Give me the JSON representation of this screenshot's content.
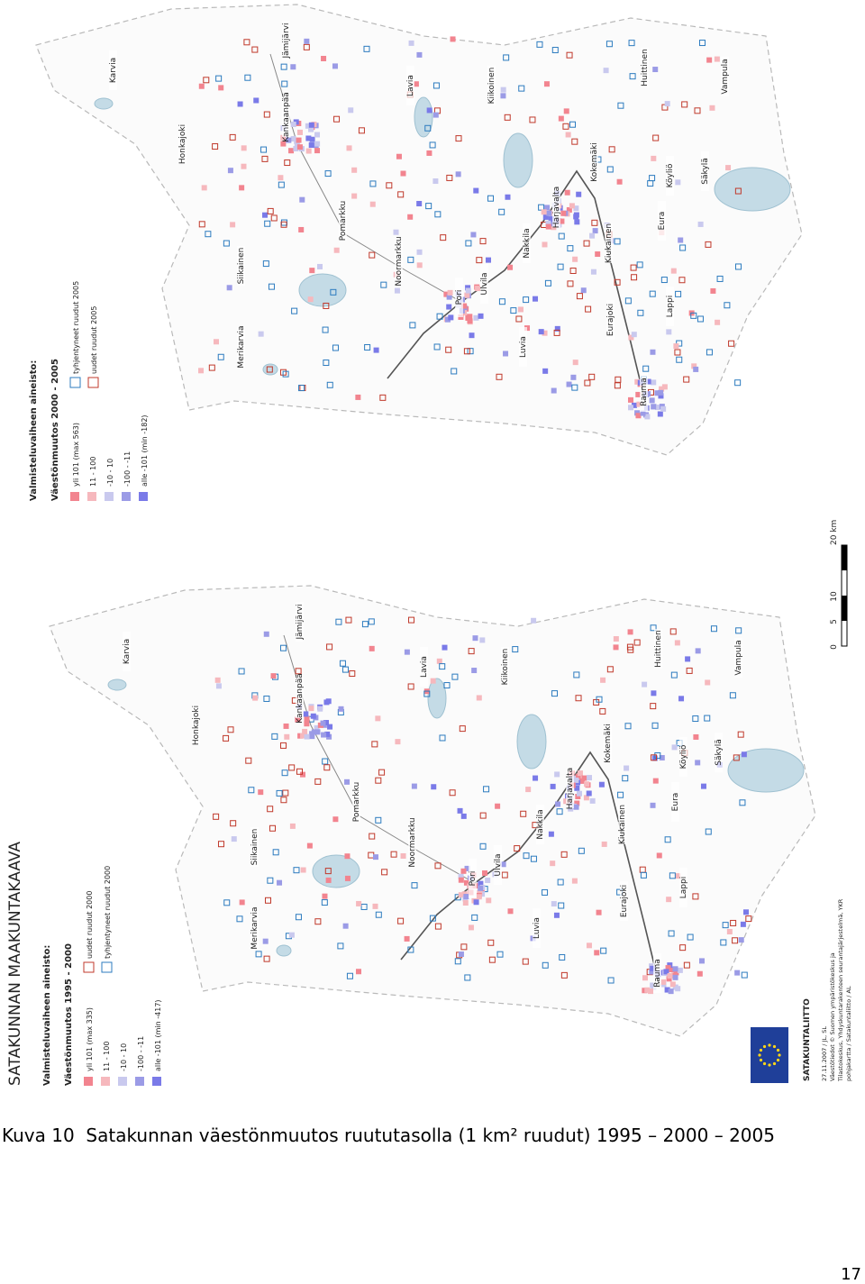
{
  "map_top": {
    "legend": {
      "title": "Valmisteluvaiheen aineisto:",
      "subtitle": "Väestönmuutos 2000 - 2005",
      "items": [
        "yli 101 (max 563)",
        "11 - 100",
        "-10 - 10",
        "-100 - -11",
        "alle -101 (min -182)"
      ],
      "squares": [
        "tyhjentyneet ruudut 2005",
        "uudet ruudut 2005"
      ]
    },
    "places": [
      "Karvia",
      "Jämijärvi",
      "Kankaanpää",
      "Honkajoki",
      "Siikainen",
      "Pomarkku",
      "Noormarkku",
      "Merikarvia",
      "Pori",
      "Ulvila",
      "Luvia",
      "Nakkila",
      "Harjavalta",
      "Kokemäki",
      "Kiikoinen",
      "Lavia",
      "Huittinen",
      "Vampula",
      "Köyliö",
      "Säkylä",
      "Eura",
      "Kiukainen",
      "Eurajoki",
      "Lappi",
      "Rauma"
    ]
  },
  "map_bottom": {
    "title": "SATAKUNNAN MAAKUNTAKAAVA",
    "legend": {
      "title": "Valmisteluvaiheen aineisto:",
      "subtitle": "Väestönmuutos 1995 - 2000",
      "items": [
        "yli 101 (max 335)",
        "11 - 100",
        "-10 - 10",
        "-100 - -11",
        "alle -101 (min -417)"
      ],
      "squares": [
        "uudet ruudut 2000",
        "tyhjentyneet ruudut 2000"
      ]
    },
    "places": [
      "Karvia",
      "Jämijärvi",
      "Kankaanpää",
      "Honkajoki",
      "Siikainen",
      "Pomarkku",
      "Noormarkku",
      "Merikarvia",
      "Pori",
      "Ulvila",
      "Luvia",
      "Nakkila",
      "Harjavalta",
      "Kokemäki",
      "Kiikoinen",
      "Lavia",
      "Huittinen",
      "Vampula",
      "Köyliö",
      "Säkylä",
      "Eura",
      "Kiukainen",
      "Eurajoki",
      "Lappi",
      "Rauma"
    ],
    "scale": [
      "0",
      "5",
      "10",
      "20 km"
    ],
    "organization": "SATAKUNTALIITTO",
    "credits": [
      "27.11.2007 / JL, SL",
      "Väestötiedot © Suomen ympäristökeskus ja",
      "Tilastokeskus, Yhdyskuntarakenteen seurantajärjestelmä, YKR",
      "pohjakartta / Satakuntaliitto / AL"
    ]
  },
  "caption": "Kuva 10  Satakunnan väestönmuutos ruututasolla (1 km² ruudut) 1995 – 2000 – 2005",
  "page_number": "17"
}
